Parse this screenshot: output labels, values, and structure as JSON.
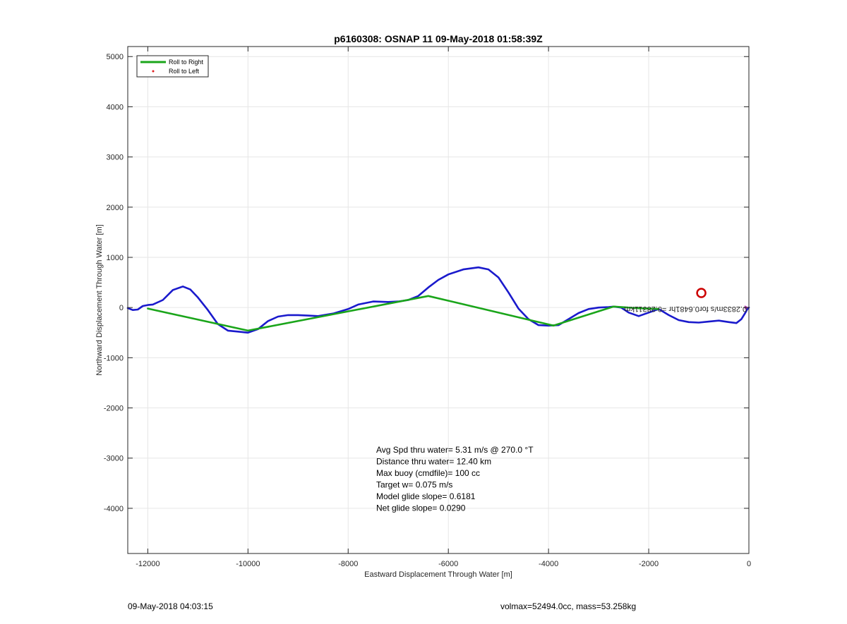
{
  "chart_data": {
    "type": "line",
    "title": "p6160308: OSNAP 11 09-May-2018 01:58:39Z",
    "xlabel": "Eastward Displacement Through Water [m]",
    "ylabel": "Northward Displacement Through Water [m]",
    "xlim": [
      -12400,
      0
    ],
    "ylim": [
      -4900,
      5200
    ],
    "xticks": [
      -12000,
      -10000,
      -8000,
      -6000,
      -4000,
      -2000,
      0
    ],
    "xtick_labels": [
      "-12000",
      "-10000",
      "-8000",
      "-6000",
      "-4000",
      "-2000",
      "0"
    ],
    "yticks": [
      -4000,
      -3000,
      -2000,
      -1000,
      0,
      1000,
      2000,
      3000,
      4000,
      5000
    ],
    "ytick_labels": [
      "-4000",
      "-3000",
      "-2000",
      "-1000",
      "0",
      "1000",
      "2000",
      "3000",
      "4000",
      "5000"
    ],
    "grid": true,
    "legend": {
      "placement": "top-left",
      "entries": [
        {
          "label": "Roll to Right",
          "color": "#1aa51a",
          "style": "line"
        },
        {
          "label": "Roll to Left",
          "color": "#e02020",
          "style": "dot"
        }
      ]
    },
    "series": [
      {
        "label": "Roll to Right",
        "color": "#1aa51a",
        "x": [
          -12000,
          -10000,
          -6400,
          -3900,
          -2700,
          -2200,
          -1800
        ],
        "y": [
          -20,
          -460,
          230,
          -360,
          20,
          -15,
          -30
        ]
      },
      {
        "color": "#1a1acc",
        "x": [
          -12400,
          -12300,
          -12200,
          -12100,
          -12000,
          -11900,
          -11700,
          -11500,
          -11300,
          -11150,
          -11000,
          -10800,
          -10600,
          -10400,
          -10200,
          -10000,
          -9800,
          -9600,
          -9400,
          -9200,
          -9000,
          -8800,
          -8600,
          -8300,
          -8000,
          -7800,
          -7500,
          -7200,
          -7000,
          -6800,
          -6600,
          -6400,
          -6200,
          -6000,
          -5700,
          -5400,
          -5200,
          -5000,
          -4800,
          -4600,
          -4400,
          -4200,
          -4000,
          -3800,
          -3600,
          -3400,
          -3200,
          -3000,
          -2800,
          -2700,
          -2550,
          -2400,
          -2200,
          -2000,
          -1800,
          -1600,
          -1400,
          -1200,
          -1000,
          -800,
          -600,
          -400,
          -250,
          -150,
          -80,
          -30,
          0
        ],
        "y": [
          -10,
          -50,
          -40,
          30,
          50,
          60,
          150,
          350,
          420,
          360,
          200,
          -50,
          -330,
          -460,
          -480,
          -500,
          -430,
          -270,
          -180,
          -150,
          -150,
          -160,
          -170,
          -120,
          -30,
          60,
          120,
          110,
          120,
          150,
          230,
          400,
          550,
          660,
          760,
          800,
          760,
          600,
          300,
          -20,
          -230,
          -350,
          -360,
          -350,
          -230,
          -110,
          -30,
          0,
          10,
          20,
          0,
          -100,
          -170,
          -100,
          -30,
          -150,
          -250,
          -290,
          -300,
          -280,
          -260,
          -290,
          -310,
          -230,
          -120,
          -30,
          0
        ]
      }
    ],
    "markers": [
      {
        "label": "current-position",
        "x": -950,
        "y": 290,
        "color": "#cc0000",
        "shape": "circle"
      }
    ],
    "annotations": [
      {
        "text": "0.2833m/s for0.6481hr =0.28311km",
        "x": -40,
        "y": 20,
        "rotation_deg": 180,
        "color": "#000000"
      }
    ],
    "stats_text": [
      "Avg Spd thru water=  5.31 m/s @ 270.0 °T",
      "Distance thru water= 12.40 km",
      "Max buoy (cmdfile)= 100 cc",
      "Target w= 0.075 m/s",
      "Model glide slope= 0.6181",
      "Net glide slope= 0.0290"
    ]
  },
  "footer": {
    "timestamp": "09-May-2018 04:03:15",
    "vehicle_info": "volmax=52494.0cc, mass=53.258kg"
  }
}
